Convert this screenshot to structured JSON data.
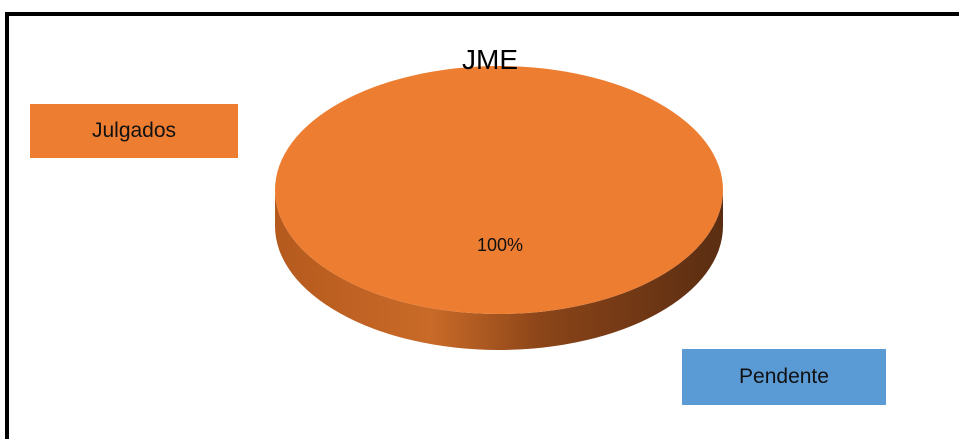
{
  "chart_data": {
    "type": "pie",
    "title": "JME",
    "slices": [
      {
        "label": "Julgados",
        "value": 100,
        "display": "100%",
        "color": "#ED7D31"
      },
      {
        "label": "Pendente",
        "value": 0,
        "display": "",
        "color": "#5B9BD5"
      }
    ],
    "legend": [
      {
        "label": "Julgados",
        "color": "#ED7D31"
      },
      {
        "label": "Pendente",
        "color": "#5B9BD5"
      }
    ],
    "style": "3d"
  }
}
